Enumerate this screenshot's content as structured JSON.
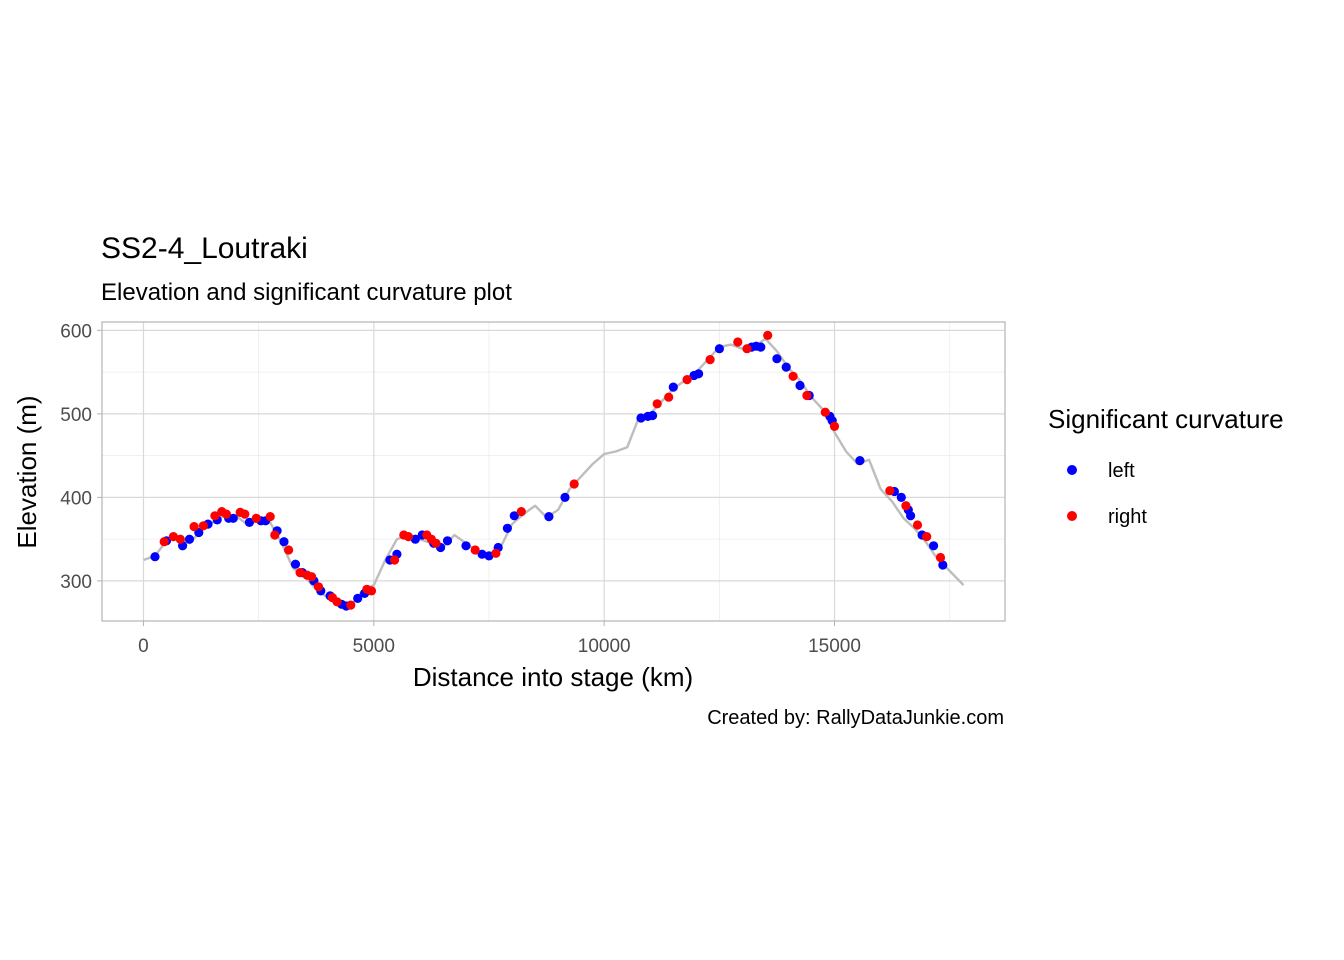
{
  "chart_data": {
    "type": "line",
    "title": "SS2-4_Loutraki",
    "subtitle": "Elevation and significant curvature plot",
    "xlabel": "Distance into stage (km)",
    "ylabel": "Elevation (m)",
    "caption": "Created by: RallyDataJunkie.com",
    "xlim": [
      -900,
      18700
    ],
    "ylim": [
      252,
      610
    ],
    "xticks": [
      0,
      5000,
      10000,
      15000
    ],
    "xtick_labels": [
      "0",
      "5000",
      "10000",
      "15000"
    ],
    "yticks": [
      300,
      400,
      500,
      600
    ],
    "ytick_labels": [
      "300",
      "400",
      "500",
      "600"
    ],
    "grid": true,
    "legend": {
      "title": "Significant curvature",
      "placement": "right",
      "entries": [
        {
          "label": "left",
          "color": "#0000ff"
        },
        {
          "label": "right",
          "color": "#ff0000"
        }
      ]
    },
    "colors": {
      "line": "#bdbdbd",
      "left": "#0000ff",
      "right": "#ff0000",
      "panel_border": "#b3b3b3",
      "grid_major": "#d9d9d9",
      "grid_minor": "#ececec"
    },
    "series": [
      {
        "name": "elevation",
        "x": [
          0,
          250,
          500,
          750,
          1000,
          1250,
          1500,
          1750,
          2000,
          2250,
          2500,
          2750,
          3000,
          3250,
          3500,
          3750,
          4000,
          4250,
          4500,
          4750,
          5000,
          5250,
          5500,
          5750,
          6000,
          6250,
          6500,
          6750,
          7000,
          7250,
          7500,
          7750,
          8000,
          8250,
          8500,
          8750,
          9000,
          9250,
          9500,
          9750,
          10000,
          10250,
          10500,
          10750,
          11000,
          11250,
          11500,
          11750,
          12000,
          12250,
          12500,
          12750,
          13000,
          13250,
          13500,
          13750,
          14000,
          14250,
          14500,
          14750,
          15000,
          15250,
          15500,
          15750,
          16000,
          16250,
          16500,
          16750,
          17000,
          17250,
          17500,
          17800
        ],
        "values": [
          325,
          330,
          348,
          352,
          345,
          360,
          370,
          378,
          378,
          368,
          372,
          370,
          345,
          315,
          305,
          290,
          280,
          270,
          270,
          288,
          295,
          325,
          350,
          355,
          350,
          345,
          340,
          355,
          345,
          335,
          328,
          340,
          368,
          380,
          390,
          376,
          385,
          410,
          425,
          440,
          452,
          455,
          460,
          495,
          500,
          515,
          530,
          540,
          550,
          565,
          580,
          583,
          578,
          580,
          590,
          575,
          555,
          540,
          520,
          505,
          478,
          455,
          440,
          445,
          410,
          395,
          375,
          362,
          345,
          325,
          312,
          295
        ]
      },
      {
        "name": "left",
        "x": [
          250,
          500,
          850,
          1000,
          1200,
          1400,
          1600,
          1850,
          1950,
          2300,
          2550,
          2650,
          2900,
          3050,
          3300,
          3450,
          3700,
          3850,
          4050,
          4300,
          4400,
          4650,
          4800,
          5350,
          5500,
          5900,
          6050,
          6300,
          6450,
          6600,
          7000,
          7350,
          7500,
          7700,
          7900,
          8050,
          8800,
          9150,
          10800,
          10950,
          11050,
          11500,
          11950,
          12050,
          12500,
          13200,
          13300,
          13400,
          13750,
          13950,
          14250,
          14450,
          14900,
          14950,
          15550,
          16300,
          16450,
          16600,
          16650,
          16900,
          17150,
          17350
        ],
        "values": [
          329,
          348,
          342,
          350,
          358,
          368,
          373,
          375,
          375,
          370,
          372,
          372,
          360,
          347,
          320,
          310,
          300,
          288,
          282,
          272,
          270,
          279,
          285,
          325,
          332,
          350,
          355,
          345,
          340,
          348,
          342,
          332,
          330,
          340,
          363,
          378,
          377,
          400,
          495,
          497,
          498,
          532,
          546,
          548,
          578,
          580,
          581,
          580,
          566,
          556,
          534,
          522,
          497,
          492,
          444,
          407,
          400,
          385,
          378,
          355,
          342,
          319
        ]
      },
      {
        "name": "right",
        "x": [
          450,
          650,
          800,
          1100,
          1300,
          1550,
          1700,
          1800,
          2100,
          2200,
          2450,
          2750,
          2850,
          3150,
          3400,
          3550,
          3650,
          3800,
          4100,
          4200,
          4500,
          4850,
          4950,
          5450,
          5650,
          5750,
          6150,
          6250,
          6350,
          7200,
          7650,
          8200,
          9350,
          11150,
          11400,
          11800,
          12300,
          12900,
          13100,
          13550,
          14100,
          14400,
          14800,
          15000,
          16200,
          16550,
          16800,
          17000,
          17300
        ],
        "values": [
          347,
          353,
          350,
          365,
          366,
          378,
          383,
          380,
          382,
          380,
          375,
          377,
          355,
          337,
          310,
          307,
          305,
          293,
          280,
          275,
          271,
          290,
          288,
          325,
          355,
          353,
          355,
          350,
          345,
          337,
          333,
          383,
          416,
          512,
          520,
          541,
          565,
          586,
          578,
          594,
          545,
          522,
          502,
          485,
          408,
          390,
          367,
          353,
          328
        ]
      }
    ]
  }
}
